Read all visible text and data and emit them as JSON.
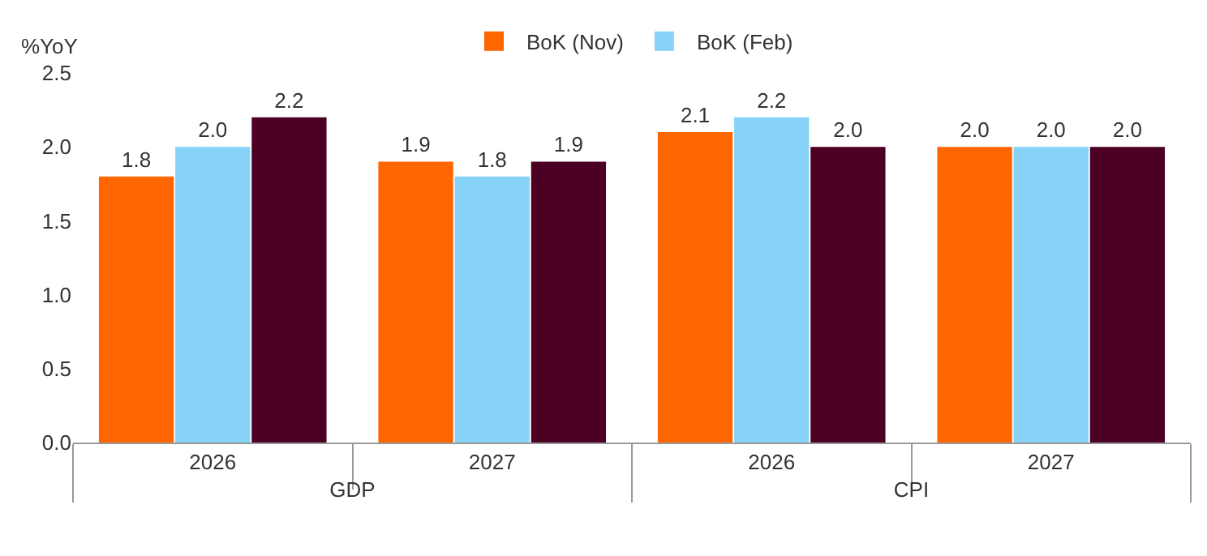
{
  "chart_data": {
    "type": "bar",
    "ylabel": "%YoY",
    "categories": [
      "2026",
      "2027",
      "2026",
      "2027"
    ],
    "annotations": [
      "GDP",
      "CPI"
    ],
    "series": [
      {
        "name": "BoK (Nov)",
        "color": "#ff6600",
        "values": [
          1.8,
          1.9,
          2.1,
          2.0
        ],
        "value_labels": [
          "1.8",
          "1.9",
          "2.1",
          "2.0"
        ]
      },
      {
        "name": "BoK (Feb)",
        "color": "#87d3f8",
        "values": [
          2.0,
          1.8,
          2.2,
          2.0
        ],
        "value_labels": [
          "2.0",
          "1.8",
          "2.2",
          "2.0"
        ]
      },
      {
        "color": "#4b0024",
        "values": [
          2.2,
          1.9,
          2.0,
          2.0
        ],
        "value_labels": [
          "2.2",
          "1.9",
          "2.0",
          "2.0"
        ]
      }
    ],
    "ylim": [
      0,
      2.5
    ],
    "yticks": [
      {
        "value": 0,
        "label": "0.0"
      },
      {
        "value": 0.5,
        "label": "0.5"
      },
      {
        "value": 1,
        "label": "1.0"
      },
      {
        "value": 1.5,
        "label": "1.5"
      },
      {
        "value": 2,
        "label": "2.0"
      },
      {
        "value": 2.5,
        "label": "2.5"
      }
    ],
    "grid": false,
    "legend": "top"
  }
}
